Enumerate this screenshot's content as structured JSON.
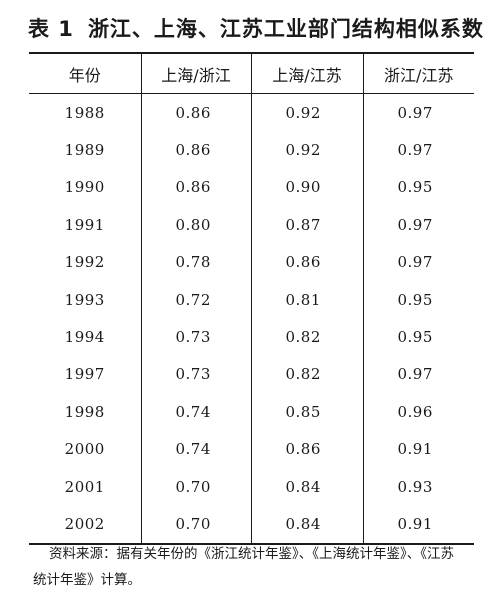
{
  "table": {
    "label": "表 1",
    "title": "浙江、上海、江苏工业部门结构相似系数",
    "columns": [
      "年份",
      "上海/浙江",
      "上海/江苏",
      "浙江/江苏"
    ],
    "rows": [
      {
        "year": "1988",
        "sh_zj": "0.86",
        "sh_js": "0.92",
        "zj_js": "0.97"
      },
      {
        "year": "1989",
        "sh_zj": "0.86",
        "sh_js": "0.92",
        "zj_js": "0.97"
      },
      {
        "year": "1990",
        "sh_zj": "0.86",
        "sh_js": "0.90",
        "zj_js": "0.95"
      },
      {
        "year": "1991",
        "sh_zj": "0.80",
        "sh_js": "0.87",
        "zj_js": "0.97"
      },
      {
        "year": "1992",
        "sh_zj": "0.78",
        "sh_js": "0.86",
        "zj_js": "0.97"
      },
      {
        "year": "1993",
        "sh_zj": "0.72",
        "sh_js": "0.81",
        "zj_js": "0.95"
      },
      {
        "year": "1994",
        "sh_zj": "0.73",
        "sh_js": "0.82",
        "zj_js": "0.95"
      },
      {
        "year": "1997",
        "sh_zj": "0.73",
        "sh_js": "0.82",
        "zj_js": "0.97"
      },
      {
        "year": "1998",
        "sh_zj": "0.74",
        "sh_js": "0.85",
        "zj_js": "0.96"
      },
      {
        "year": "2000",
        "sh_zj": "0.74",
        "sh_js": "0.86",
        "zj_js": "0.91"
      },
      {
        "year": "2001",
        "sh_zj": "0.70",
        "sh_js": "0.84",
        "zj_js": "0.93"
      },
      {
        "year": "2002",
        "sh_zj": "0.70",
        "sh_js": "0.84",
        "zj_js": "0.91"
      }
    ],
    "source": "资料来源：据有关年份的《浙江统计年鉴》、《上海统计年鉴》、《江苏统计年鉴》计算。"
  }
}
